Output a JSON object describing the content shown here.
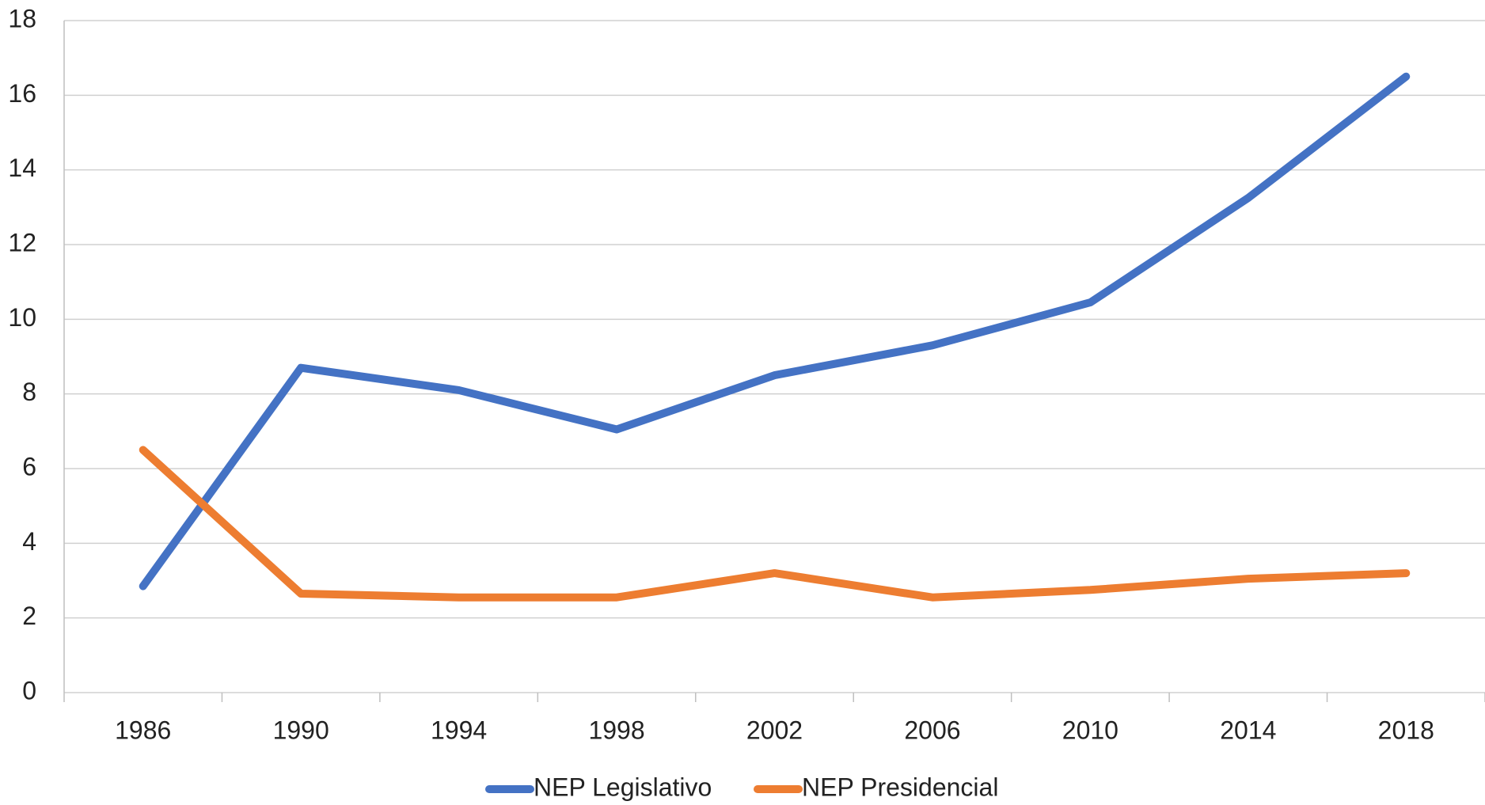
{
  "chart_data": {
    "type": "line",
    "categories": [
      "1986",
      "1990",
      "1994",
      "1998",
      "2002",
      "2006",
      "2010",
      "2014",
      "2018"
    ],
    "series": [
      {
        "name": "NEP Legislativo",
        "color": "#4472c4",
        "values": [
          2.85,
          8.7,
          8.1,
          7.05,
          8.5,
          9.3,
          10.45,
          13.25,
          16.5
        ]
      },
      {
        "name": "NEP Presidencial",
        "color": "#ed7d31",
        "values": [
          6.5,
          2.65,
          2.55,
          2.55,
          3.2,
          2.55,
          2.75,
          3.05,
          3.2
        ]
      }
    ],
    "ylim": [
      0,
      18
    ],
    "yticks": [
      0,
      2,
      4,
      6,
      8,
      10,
      12,
      14,
      16,
      18
    ],
    "grid": true,
    "legend": "bottom"
  }
}
